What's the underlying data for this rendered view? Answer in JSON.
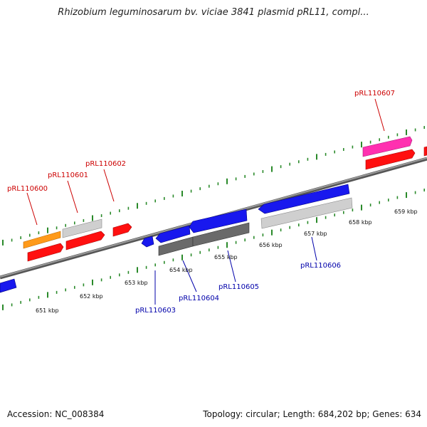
{
  "title": "Rhizobium leguminosarum bv. viciae 3841 plasmid pRL11, compl...",
  "footer": {
    "accession_label": "Accession:",
    "accession": "NC_008384",
    "topology_label": "Topology:",
    "topology": "circular",
    "length_label": "Length:",
    "length": "684,202 bp",
    "genes_label": "Genes:",
    "genes": "634"
  },
  "colors": {
    "backbone": "#777777",
    "tick": "#2a8a2a",
    "forward_label": "#cc0000",
    "reverse_label": "#0000aa",
    "red": "#ff1010",
    "blue": "#1818ee",
    "orange": "#ff9a1a",
    "light_gray": "#c8c8c8",
    "dark_gray": "#6a6a6a",
    "pink": "#ff30b0"
  },
  "scale_ticks": [
    "651 kbp",
    "652 kbp",
    "653 kbp",
    "654 kbp",
    "655 kbp",
    "656 kbp",
    "657 kbp",
    "658 kbp",
    "659 kbp"
  ],
  "forward_gene_labels": [
    "pRL110600",
    "pRL110601",
    "pRL110602",
    "pRL110607"
  ],
  "reverse_gene_labels": [
    "pRL110603",
    "pRL110604",
    "pRL110605",
    "pRL110606"
  ]
}
